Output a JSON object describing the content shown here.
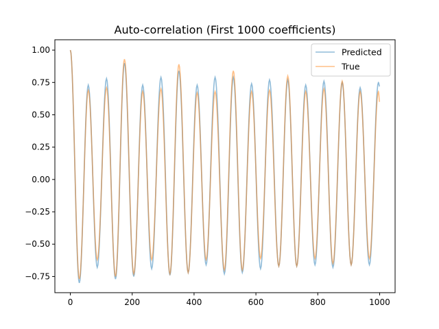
{
  "chart_data": {
    "type": "line",
    "title": "Auto-correlation (First 1000 coefficients)",
    "xlabel": "",
    "ylabel": "",
    "xlim": [
      -50,
      1050
    ],
    "ylim": [
      -0.875,
      1.08
    ],
    "x_ticks": [
      0,
      200,
      400,
      600,
      800,
      1000
    ],
    "x_tick_labels": [
      "0",
      "200",
      "400",
      "600",
      "800",
      "1000"
    ],
    "y_ticks": [
      -0.75,
      -0.5,
      -0.25,
      0.0,
      0.25,
      0.5,
      0.75,
      1.0
    ],
    "y_tick_labels": [
      "−0.75",
      "−0.50",
      "−0.25",
      "0.00",
      "0.25",
      "0.50",
      "0.75",
      "1.00"
    ],
    "grid": false,
    "legend_position": "top-right",
    "series": [
      {
        "name": "Predicted",
        "color": "#1f77b4",
        "opacity": 0.5,
        "extrema": [
          [
            0,
            1.0
          ],
          [
            29,
            -0.8
          ],
          [
            58,
            0.73
          ],
          [
            87,
            -0.68
          ],
          [
            117,
            0.78
          ],
          [
            146,
            -0.77
          ],
          [
            175,
            0.9
          ],
          [
            205,
            -0.75
          ],
          [
            234,
            0.73
          ],
          [
            263,
            -0.69
          ],
          [
            293,
            0.79
          ],
          [
            322,
            -0.74
          ],
          [
            351,
            0.84
          ],
          [
            381,
            -0.72
          ],
          [
            410,
            0.73
          ],
          [
            439,
            -0.66
          ],
          [
            468,
            0.79
          ],
          [
            498,
            -0.73
          ],
          [
            527,
            0.79
          ],
          [
            556,
            -0.72
          ],
          [
            586,
            0.74
          ],
          [
            615,
            -0.69
          ],
          [
            644,
            0.77
          ],
          [
            674,
            -0.67
          ],
          [
            703,
            0.77
          ],
          [
            732,
            -0.67
          ],
          [
            761,
            0.73
          ],
          [
            791,
            -0.66
          ],
          [
            820,
            0.76
          ],
          [
            849,
            -0.68
          ],
          [
            879,
            0.75
          ],
          [
            908,
            -0.66
          ],
          [
            937,
            0.71
          ],
          [
            967,
            -0.66
          ],
          [
            996,
            0.75
          ],
          [
            1000,
            0.72
          ]
        ]
      },
      {
        "name": "True",
        "color": "#ff7f0e",
        "opacity": 0.5,
        "extrema": [
          [
            0,
            1.0
          ],
          [
            29,
            -0.77
          ],
          [
            58,
            0.69
          ],
          [
            87,
            -0.62
          ],
          [
            117,
            0.71
          ],
          [
            146,
            -0.75
          ],
          [
            175,
            0.93
          ],
          [
            205,
            -0.73
          ],
          [
            234,
            0.68
          ],
          [
            263,
            -0.62
          ],
          [
            293,
            0.7
          ],
          [
            322,
            -0.73
          ],
          [
            351,
            0.89
          ],
          [
            381,
            -0.72
          ],
          [
            410,
            0.67
          ],
          [
            439,
            -0.62
          ],
          [
            468,
            0.68
          ],
          [
            498,
            -0.7
          ],
          [
            527,
            0.84
          ],
          [
            556,
            -0.7
          ],
          [
            586,
            0.68
          ],
          [
            615,
            -0.61
          ],
          [
            644,
            0.69
          ],
          [
            674,
            -0.67
          ],
          [
            703,
            0.8
          ],
          [
            732,
            -0.67
          ],
          [
            761,
            0.68
          ],
          [
            791,
            -0.61
          ],
          [
            820,
            0.7
          ],
          [
            849,
            -0.65
          ],
          [
            879,
            0.76
          ],
          [
            908,
            -0.66
          ],
          [
            937,
            0.68
          ],
          [
            967,
            -0.61
          ],
          [
            996,
            0.68
          ],
          [
            1000,
            0.6
          ]
        ]
      }
    ]
  }
}
